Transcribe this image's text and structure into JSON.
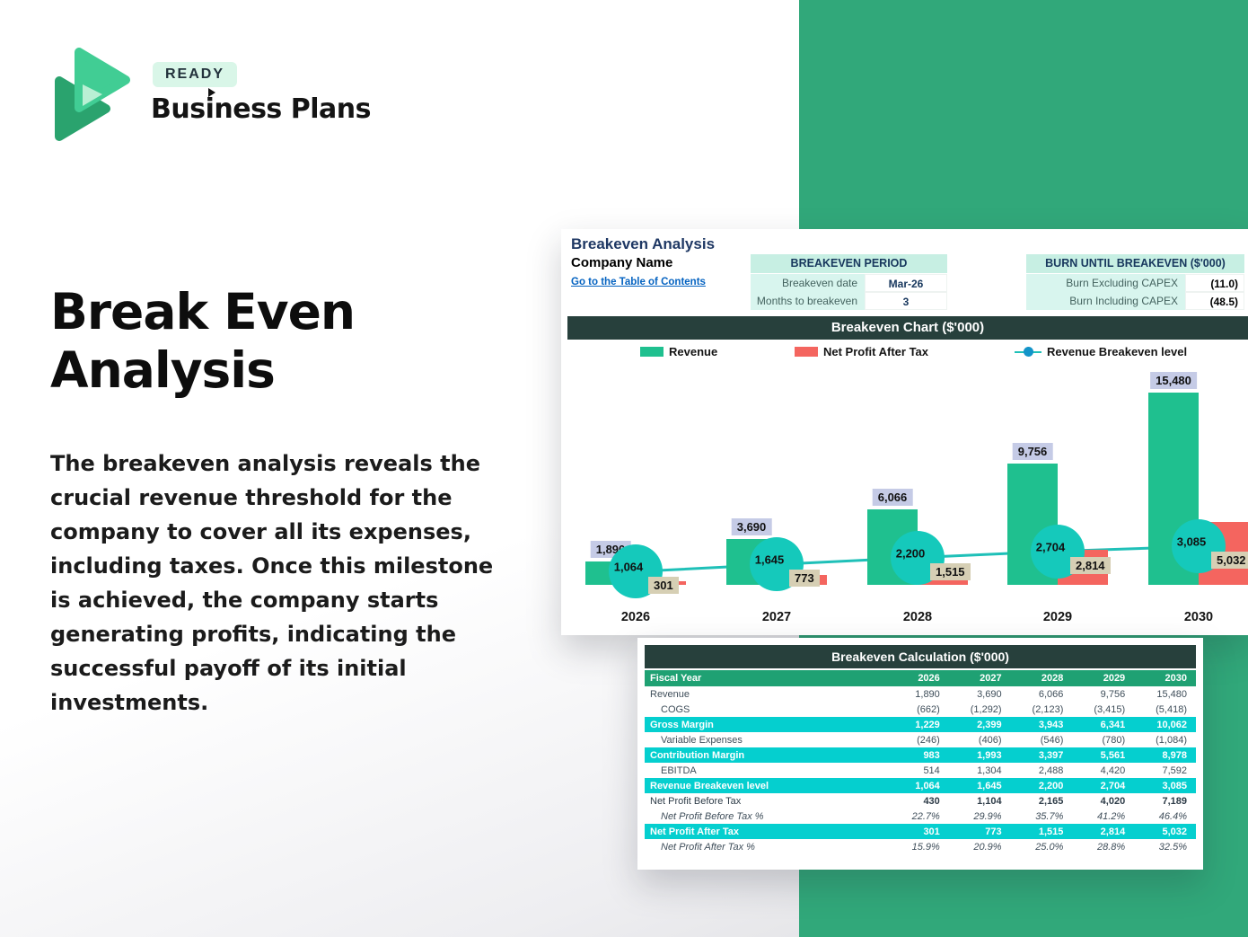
{
  "colors": {
    "brand_green": "#31a87a",
    "bar_green": "#1fc08f",
    "bar_red": "#f4655f",
    "marker_teal": "#15c9bb",
    "cyan_row": "#05cfcf",
    "green_row": "#1fa173",
    "dark_bar": "#27403c",
    "mint": "#c7efe3",
    "hyperlink": "#0563c1"
  },
  "logo": {
    "badge": "READY",
    "wordmark": "Business Plans",
    "icon": "play-triangles-icon"
  },
  "hero": {
    "title": "Break Even Analysis",
    "paragraph": "The breakeven analysis reveals the crucial revenue threshold for the company to cover all its expenses, including taxes. Once this milestone is achieved, the company starts generating profits, indicating the successful payoff of its initial investments."
  },
  "sheet": {
    "title": "Breakeven Analysis",
    "company": "Company Name",
    "toc_link": "Go to the Table of Contents",
    "breakeven_period": {
      "header": "BREAKEVEN PERIOD",
      "rows": [
        {
          "label": "Breakeven date",
          "value": "Mar-26"
        },
        {
          "label": "Months to breakeven",
          "value": "3"
        }
      ]
    },
    "burn": {
      "header": "BURN UNTIL BREAKEVEN ($'000)",
      "rows": [
        {
          "label": "Burn Excluding CAPEX",
          "value": "(11.0)"
        },
        {
          "label": "Burn Including CAPEX",
          "value": "(48.5)"
        }
      ]
    }
  },
  "chart_data": {
    "type": "bar",
    "title": "Breakeven Chart ($'000)",
    "categories": [
      "2026",
      "2027",
      "2028",
      "2029",
      "2030"
    ],
    "series": [
      {
        "name": "Revenue",
        "type": "bar",
        "color": "#1fc08f",
        "values": [
          1890,
          3690,
          6066,
          9756,
          15480
        ],
        "labels": [
          "1,890",
          "3,690",
          "6,066",
          "9,756",
          "15,480"
        ]
      },
      {
        "name": "Net Profit After Tax",
        "type": "bar",
        "color": "#f4655f",
        "values": [
          301,
          773,
          1515,
          2814,
          5032
        ],
        "labels": [
          "301",
          "773",
          "1,515",
          "2,814",
          "5,032"
        ]
      },
      {
        "name": "Revenue Breakeven level",
        "type": "line",
        "color": "#15c9bb",
        "values": [
          1064,
          1645,
          2200,
          2704,
          3085
        ],
        "labels": [
          "1,064",
          "1,645",
          "2,200",
          "2,704",
          "3,085"
        ]
      }
    ],
    "ylim": [
      0,
      16000
    ],
    "grid": false,
    "legend_position": "top"
  },
  "calc_table": {
    "title": "Breakeven Calculation ($'000)",
    "header": {
      "label": "Fiscal Year",
      "years": [
        "2026",
        "2027",
        "2028",
        "2029",
        "2030"
      ]
    },
    "rows": [
      {
        "label": "Revenue",
        "style": "plain",
        "values": [
          "1,890",
          "3,690",
          "6,066",
          "9,756",
          "15,480"
        ]
      },
      {
        "label": "COGS",
        "style": "indent",
        "values": [
          "(662)",
          "(1,292)",
          "(2,123)",
          "(3,415)",
          "(5,418)"
        ]
      },
      {
        "label": "Gross Margin",
        "style": "cyan",
        "values": [
          "1,229",
          "2,399",
          "3,943",
          "6,341",
          "10,062"
        ]
      },
      {
        "label": "Variable Expenses",
        "style": "indent",
        "values": [
          "(246)",
          "(406)",
          "(546)",
          "(780)",
          "(1,084)"
        ]
      },
      {
        "label": "Contribution Margin",
        "style": "cyan",
        "values": [
          "983",
          "1,993",
          "3,397",
          "5,561",
          "8,978"
        ]
      },
      {
        "label": "EBITDA",
        "style": "indent",
        "values": [
          "514",
          "1,304",
          "2,488",
          "4,420",
          "7,592"
        ]
      },
      {
        "label": "Revenue Breakeven level",
        "style": "cyan",
        "values": [
          "1,064",
          "1,645",
          "2,200",
          "2,704",
          "3,085"
        ]
      },
      {
        "label": "Net Profit Before Tax",
        "style": "bold",
        "values": [
          "430",
          "1,104",
          "2,165",
          "4,020",
          "7,189"
        ]
      },
      {
        "label": "Net Profit Before Tax %",
        "style": "italic",
        "values": [
          "22.7%",
          "29.9%",
          "35.7%",
          "41.2%",
          "46.4%"
        ]
      },
      {
        "label": "Net Profit After Tax",
        "style": "cyan",
        "values": [
          "301",
          "773",
          "1,515",
          "2,814",
          "5,032"
        ]
      },
      {
        "label": "Net Profit After Tax %",
        "style": "italic",
        "values": [
          "15.9%",
          "20.9%",
          "25.0%",
          "28.8%",
          "32.5%"
        ]
      }
    ]
  }
}
